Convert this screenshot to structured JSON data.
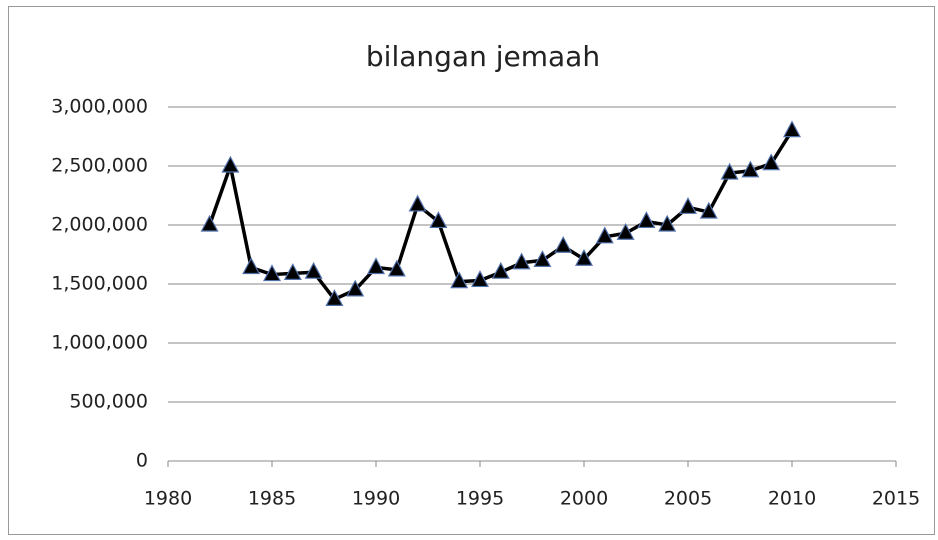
{
  "chart_data": {
    "type": "line",
    "title": "bilangan jemaah",
    "x": [
      1982,
      1983,
      1984,
      1985,
      1986,
      1987,
      1988,
      1989,
      1990,
      1991,
      1992,
      1993,
      1994,
      1995,
      1996,
      1997,
      1998,
      1999,
      2000,
      2001,
      2002,
      2003,
      2004,
      2005,
      2006,
      2007,
      2008,
      2009,
      2010
    ],
    "values": [
      2000000,
      2500000,
      1640000,
      1580000,
      1590000,
      1600000,
      1370000,
      1450000,
      1640000,
      1620000,
      2170000,
      2030000,
      1520000,
      1530000,
      1600000,
      1680000,
      1700000,
      1820000,
      1710000,
      1900000,
      1930000,
      2030000,
      2000000,
      2150000,
      2110000,
      2440000,
      2460000,
      2520000,
      2800000
    ],
    "color": "#000000",
    "marker_edge": "#4f6fa8",
    "xlim": [
      1980,
      2015
    ],
    "xticks": [
      1980,
      1985,
      1990,
      1995,
      2000,
      2005,
      2010,
      2015
    ],
    "ylim": [
      0,
      3000000
    ],
    "yticks": [
      0,
      {
        "value": 500000,
        "label": "500,000"
      },
      {
        "value": 1000000,
        "label": "1,000,000"
      },
      {
        "value": 1500000,
        "label": "1,500,000"
      },
      {
        "value": 2000000,
        "label": "2,000,000"
      },
      {
        "value": 2500000,
        "label": "2,500,000"
      },
      {
        "value": 3000000,
        "label": "3,000,000"
      }
    ],
    "grid": true
  }
}
